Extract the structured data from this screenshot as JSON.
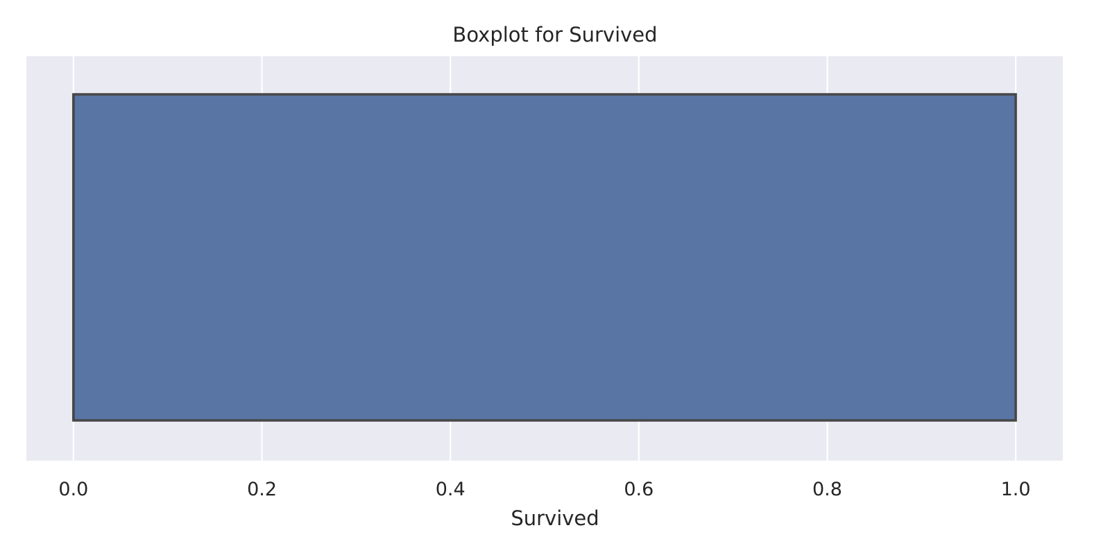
{
  "chart_data": {
    "type": "boxplot",
    "orientation": "horizontal",
    "title": "Boxplot for Survived",
    "xlabel": "Survived",
    "ylabel": "",
    "xlim": [
      -0.05,
      1.05
    ],
    "xticks": [
      0.0,
      0.2,
      0.4,
      0.6,
      0.8,
      1.0
    ],
    "xtick_labels": [
      "0.0",
      "0.2",
      "0.4",
      "0.6",
      "0.8",
      "1.0"
    ],
    "grid": true,
    "series": [
      {
        "min": 0.0,
        "q1": 0.0,
        "median": 0.0,
        "q3": 1.0,
        "max": 1.0,
        "color": "#5975a4"
      }
    ],
    "colors": {
      "plot_background": "#eaeaf2",
      "grid": "#ffffff",
      "box_fill": "#5975a4",
      "box_edge": "#474747",
      "text": "#262626"
    }
  }
}
